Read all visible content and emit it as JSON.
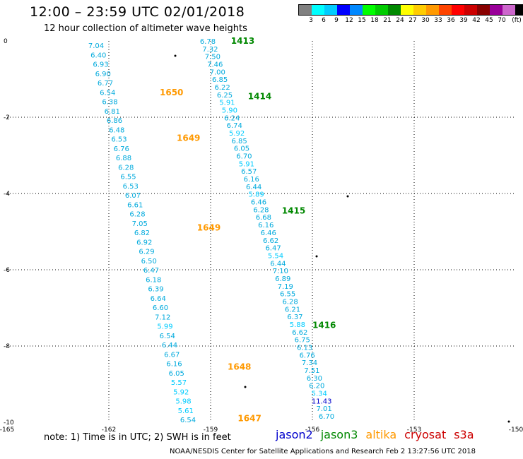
{
  "header": {
    "title": "12:00 – 23:59 UTC 02/01/2018",
    "subtitle": "12 hour collection of altimeter wave heights"
  },
  "legend": {
    "unit": "(ft)",
    "colors": [
      "#808080",
      "#00ffff",
      "#00ccff",
      "#0000ff",
      "#0088ff",
      "#00ff00",
      "#00cc00",
      "#008800",
      "#ffff00",
      "#ffcc00",
      "#ff9900",
      "#ff4400",
      "#ff0000",
      "#cc0000",
      "#880000",
      "#990099",
      "#cc66cc",
      "#000000"
    ],
    "labels": [
      "3",
      "6",
      "9",
      "12",
      "15",
      "18",
      "21",
      "24",
      "27",
      "30",
      "33",
      "36",
      "39",
      "42",
      "45",
      "70"
    ]
  },
  "axes": {
    "lat_labels": [
      "0",
      "-2",
      "-4",
      "-6",
      "-8",
      "-10"
    ],
    "lon_labels": [
      "-165",
      "-162",
      "-159",
      "-156",
      "-153",
      "-150"
    ]
  },
  "chart_data": {
    "type": "map-track",
    "lon_range": [
      -165,
      -150
    ],
    "lat_range": [
      -10,
      0
    ],
    "tracks": [
      {
        "satellite": "altika",
        "color": "#ff9900",
        "time_labels": [
          {
            "text": "1650",
            "lon": -160.5,
            "lat": -1.35
          },
          {
            "text": "1649",
            "lon": -160.0,
            "lat": -2.55
          },
          {
            "text": "1649",
            "lon": -159.4,
            "lat": -4.9
          },
          {
            "text": "1648",
            "lon": -158.5,
            "lat": -8.55
          },
          {
            "text": "1647",
            "lon": -158.2,
            "lat": -9.9
          }
        ],
        "values": [
          "7.04",
          "6.40",
          "6.93",
          "6.90",
          "6.77",
          "6.54",
          "6.38",
          "6.81",
          "6.86",
          "6.48",
          "6.53",
          "6.76",
          "6.88",
          "6.28",
          "6.55",
          "6.53",
          "6.07",
          "6.61",
          "6.28",
          "7.05",
          "6.82",
          "6.92",
          "6.29",
          "6.50",
          "6.47",
          "6.18",
          "6.39",
          "6.64",
          "6.60",
          "7.12",
          "5.99",
          "6.54",
          "6.44",
          "6.67",
          "6.16",
          "6.05",
          "5.57",
          "5.92",
          "5.98",
          "5.61",
          "6.54"
        ]
      },
      {
        "satellite": "jason3",
        "color": "#008800",
        "time_labels": [
          {
            "text": "1413",
            "lon": -158.4,
            "lat": 0.0
          },
          {
            "text": "1414",
            "lon": -157.9,
            "lat": -1.45
          },
          {
            "text": "1415",
            "lon": -156.9,
            "lat": -4.45
          },
          {
            "text": "1416",
            "lon": -156.0,
            "lat": -7.45
          }
        ],
        "values": [
          "6.78",
          "7.32",
          "7.50",
          "7.46",
          "7.00",
          "6.85",
          "6.22",
          "6.25",
          "5.91",
          "5.90",
          "6.24",
          "6.74",
          "5.92",
          "6.85",
          "6.05",
          "6.70",
          "5.91",
          "6.57",
          "6.16",
          "6.44",
          "5.89",
          "6.46",
          "6.28",
          "6.68",
          "6.16",
          "6.46",
          "6.62",
          "6.47",
          "5.54",
          "6.44",
          "7.10",
          "6.89",
          "7.19",
          "6.55",
          "6.28",
          "6.21",
          "6.37",
          "5.88",
          "6.62",
          "6.75",
          "6.13",
          "6.76",
          "7.34",
          "7.51",
          "6.30",
          "6.20",
          "5.34",
          "11.43",
          "7.01",
          "6.70"
        ]
      }
    ]
  },
  "notes": "note:  1) Time is in UTC;  2) SWH is in feet",
  "satellites": [
    {
      "name": "jason2",
      "color": "#0000cc"
    },
    {
      "name": "jason3",
      "color": "#008800"
    },
    {
      "name": "altika",
      "color": "#ff9900"
    },
    {
      "name": "cryosat",
      "color": "#cc0000"
    },
    {
      "name": "s3a",
      "color": "#cc0000"
    }
  ],
  "credit": "NOAA/NESDIS Center for Satellite Applications and Research    Feb  2 13:27:56 UTC 2018"
}
